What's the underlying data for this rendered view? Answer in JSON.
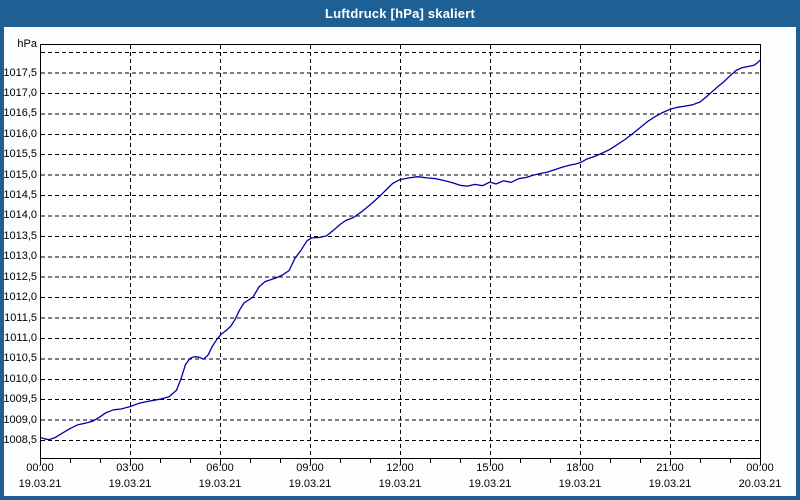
{
  "window": {
    "title": "Luftdruck [hPa] skaliert"
  },
  "colors": {
    "titlebar": "#1E6094",
    "window_frame": "#1E6094",
    "title_text": "#FFFFFF",
    "plot_background": "#FFFFFF",
    "content_background": "#FCFDFE",
    "grid": "#000000",
    "axis_text": "#000000",
    "line": "#0000A8"
  },
  "axes": {
    "y_unit_label": "hPa",
    "y_tick_labels": [
      "1017,5",
      "1017,0",
      "1016,5",
      "1016,0",
      "1015,5",
      "1015,0",
      "1014,5",
      "1014,0",
      "1013,5",
      "1013,0",
      "1012,5",
      "1012,0",
      "1011,5",
      "1011,0",
      "1010,5",
      "1010,0",
      "1009,5",
      "1009,0",
      "1008,5"
    ],
    "y_tick_values": [
      1017.5,
      1017.0,
      1016.5,
      1016.0,
      1015.5,
      1015.0,
      1014.5,
      1014.0,
      1013.5,
      1013.0,
      1012.5,
      1012.0,
      1011.5,
      1011.0,
      1010.5,
      1010.0,
      1009.5,
      1009.0,
      1008.5
    ],
    "x_ticks": [
      {
        "time": "00:00",
        "date": "19.03.21"
      },
      {
        "time": "03:00",
        "date": "19.03.21"
      },
      {
        "time": "06:00",
        "date": "19.03.21"
      },
      {
        "time": "09:00",
        "date": "19.03.21"
      },
      {
        "time": "12:00",
        "date": "19.03.21"
      },
      {
        "time": "15:00",
        "date": "19.03.21"
      },
      {
        "time": "18:00",
        "date": "19.03.21"
      },
      {
        "time": "21:00",
        "date": "19.03.21"
      },
      {
        "time": "00:00",
        "date": "20.03.21"
      }
    ]
  },
  "chart_data": {
    "type": "line",
    "title": "Luftdruck [hPa] skaliert",
    "xlabel": "",
    "ylabel": "hPa",
    "grid": "dashed",
    "legend": "none",
    "xlim_hours": [
      0,
      24
    ],
    "ylim": [
      1008.06,
      1018.2
    ],
    "y_gridline_step": 0.5,
    "y_gridlines": [
      1008.5,
      1009.0,
      1009.5,
      1010.0,
      1010.5,
      1011.0,
      1011.5,
      1012.0,
      1012.5,
      1013.0,
      1013.5,
      1014.0,
      1014.5,
      1015.0,
      1015.5,
      1016.0,
      1016.5,
      1017.0,
      1017.5,
      1018.0
    ],
    "x_gridline_hours": [
      3,
      6,
      9,
      12,
      15,
      18,
      21
    ],
    "x_minor_tick_every_hours": 1,
    "x_major_tick_every_hours": 3,
    "series": [
      {
        "name": "Luftdruck",
        "unit": "hPa",
        "color": "#0000A8",
        "points": [
          [
            0,
            1008.57
          ],
          [
            0.15,
            1008.53
          ],
          [
            0.3,
            1008.51
          ],
          [
            0.5,
            1008.56
          ],
          [
            0.75,
            1008.67
          ],
          [
            1,
            1008.78
          ],
          [
            1.25,
            1008.87
          ],
          [
            1.5,
            1008.91
          ],
          [
            1.75,
            1008.96
          ],
          [
            2,
            1009.07
          ],
          [
            2.2,
            1009.17
          ],
          [
            2.45,
            1009.24
          ],
          [
            2.7,
            1009.26
          ],
          [
            3,
            1009.32
          ],
          [
            3.3,
            1009.4
          ],
          [
            3.7,
            1009.46
          ],
          [
            4,
            1009.5
          ],
          [
            4.3,
            1009.56
          ],
          [
            4.55,
            1009.72
          ],
          [
            4.7,
            1010.0
          ],
          [
            4.85,
            1010.35
          ],
          [
            5,
            1010.5
          ],
          [
            5.15,
            1010.54
          ],
          [
            5.3,
            1010.53
          ],
          [
            5.45,
            1010.48
          ],
          [
            5.6,
            1010.58
          ],
          [
            5.75,
            1010.8
          ],
          [
            5.9,
            1010.97
          ],
          [
            6.05,
            1011.1
          ],
          [
            6.2,
            1011.18
          ],
          [
            6.35,
            1011.28
          ],
          [
            6.5,
            1011.45
          ],
          [
            6.65,
            1011.68
          ],
          [
            6.8,
            1011.86
          ],
          [
            6.95,
            1011.93
          ],
          [
            7.1,
            1012.0
          ],
          [
            7.3,
            1012.25
          ],
          [
            7.5,
            1012.38
          ],
          [
            7.7,
            1012.43
          ],
          [
            7.9,
            1012.48
          ],
          [
            8.1,
            1012.55
          ],
          [
            8.3,
            1012.65
          ],
          [
            8.5,
            1012.95
          ],
          [
            8.7,
            1013.15
          ],
          [
            8.9,
            1013.38
          ],
          [
            9.05,
            1013.45
          ],
          [
            9.3,
            1013.46
          ],
          [
            9.55,
            1013.5
          ],
          [
            9.8,
            1013.65
          ],
          [
            10,
            1013.78
          ],
          [
            10.2,
            1013.88
          ],
          [
            10.45,
            1013.95
          ],
          [
            10.7,
            1014.08
          ],
          [
            11,
            1014.26
          ],
          [
            11.25,
            1014.42
          ],
          [
            11.5,
            1014.6
          ],
          [
            11.75,
            1014.78
          ],
          [
            12,
            1014.88
          ],
          [
            12.3,
            1014.92
          ],
          [
            12.6,
            1014.95
          ],
          [
            12.9,
            1014.92
          ],
          [
            13.2,
            1014.9
          ],
          [
            13.5,
            1014.85
          ],
          [
            13.75,
            1014.8
          ],
          [
            14,
            1014.74
          ],
          [
            14.25,
            1014.72
          ],
          [
            14.5,
            1014.76
          ],
          [
            14.75,
            1014.73
          ],
          [
            15,
            1014.82
          ],
          [
            15.2,
            1014.77
          ],
          [
            15.45,
            1014.85
          ],
          [
            15.7,
            1014.81
          ],
          [
            15.95,
            1014.9
          ],
          [
            16.2,
            1014.93
          ],
          [
            16.45,
            1014.99
          ],
          [
            16.7,
            1015.03
          ],
          [
            16.9,
            1015.06
          ],
          [
            17.15,
            1015.12
          ],
          [
            17.4,
            1015.18
          ],
          [
            17.65,
            1015.23
          ],
          [
            17.85,
            1015.26
          ],
          [
            18,
            1015.29
          ],
          [
            18.25,
            1015.39
          ],
          [
            18.5,
            1015.45
          ],
          [
            18.75,
            1015.53
          ],
          [
            19,
            1015.62
          ],
          [
            19.25,
            1015.74
          ],
          [
            19.5,
            1015.86
          ],
          [
            19.75,
            1016.0
          ],
          [
            20,
            1016.15
          ],
          [
            20.25,
            1016.3
          ],
          [
            20.5,
            1016.42
          ],
          [
            20.75,
            1016.52
          ],
          [
            21,
            1016.6
          ],
          [
            21.25,
            1016.65
          ],
          [
            21.5,
            1016.68
          ],
          [
            21.75,
            1016.71
          ],
          [
            22,
            1016.78
          ],
          [
            22.2,
            1016.9
          ],
          [
            22.4,
            1017.03
          ],
          [
            22.6,
            1017.16
          ],
          [
            22.8,
            1017.28
          ],
          [
            23,
            1017.42
          ],
          [
            23.2,
            1017.55
          ],
          [
            23.4,
            1017.62
          ],
          [
            23.6,
            1017.65
          ],
          [
            23.8,
            1017.68
          ],
          [
            23.9,
            1017.73
          ],
          [
            24,
            1017.8
          ]
        ]
      }
    ]
  }
}
